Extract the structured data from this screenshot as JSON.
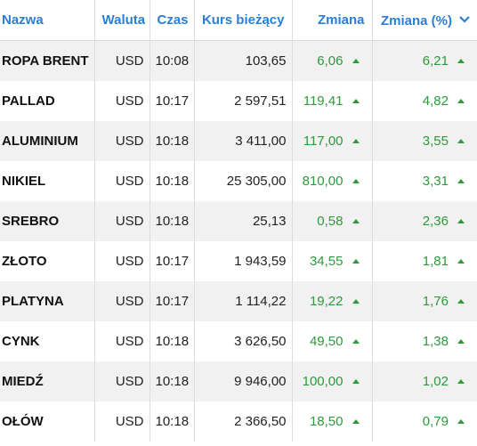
{
  "headers": {
    "name": "Nazwa",
    "currency": "Waluta",
    "time": "Czas",
    "price": "Kurs bieżący",
    "change": "Zmiana",
    "change_pct": "Zmiana (%)"
  },
  "sort_icon": "chevron-down-icon",
  "colors": {
    "accent": "#2a7fd4",
    "positive": "#2e9a3b",
    "row_alt": "#f1f1f1"
  },
  "rows": [
    {
      "name": "ROPA BRENT",
      "currency": "USD",
      "time": "10:08",
      "price": "103,65",
      "change": "6,06",
      "change_pct": "6,21"
    },
    {
      "name": "PALLAD",
      "currency": "USD",
      "time": "10:17",
      "price": "2 597,51",
      "change": "119,41",
      "change_pct": "4,82"
    },
    {
      "name": "ALUMINIUM",
      "currency": "USD",
      "time": "10:18",
      "price": "3 411,00",
      "change": "117,00",
      "change_pct": "3,55"
    },
    {
      "name": "NIKIEL",
      "currency": "USD",
      "time": "10:18",
      "price": "25 305,00",
      "change": "810,00",
      "change_pct": "3,31"
    },
    {
      "name": "SREBRO",
      "currency": "USD",
      "time": "10:18",
      "price": "25,13",
      "change": "0,58",
      "change_pct": "2,36"
    },
    {
      "name": "ZŁOTO",
      "currency": "USD",
      "time": "10:17",
      "price": "1 943,59",
      "change": "34,55",
      "change_pct": "1,81"
    },
    {
      "name": "PLATYNA",
      "currency": "USD",
      "time": "10:17",
      "price": "1 114,22",
      "change": "19,22",
      "change_pct": "1,76"
    },
    {
      "name": "CYNK",
      "currency": "USD",
      "time": "10:18",
      "price": "3 626,50",
      "change": "49,50",
      "change_pct": "1,38"
    },
    {
      "name": "MIEDŹ",
      "currency": "USD",
      "time": "10:18",
      "price": "9 946,00",
      "change": "100,00",
      "change_pct": "1,02"
    },
    {
      "name": "OŁÓW",
      "currency": "USD",
      "time": "10:18",
      "price": "2 366,50",
      "change": "18,50",
      "change_pct": "0,79"
    }
  ]
}
